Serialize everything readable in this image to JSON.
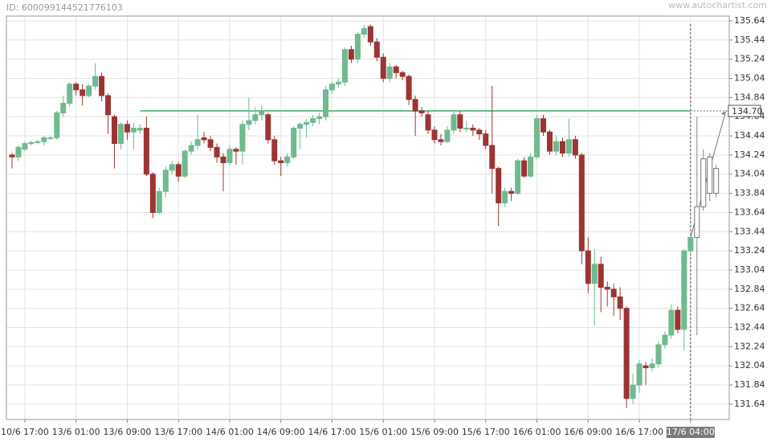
{
  "id_text": "ID: 600099144521776103",
  "watermark": "www.autochartist.com",
  "chart_data": {
    "type": "candlestick",
    "categories": [
      null,
      null,
      "10/6 17:00",
      null,
      null,
      null,
      null,
      null,
      null,
      null,
      "13/6 01:00",
      null,
      null,
      null,
      null,
      null,
      null,
      null,
      "13/6 09:00",
      null,
      null,
      null,
      null,
      null,
      null,
      null,
      "13/6 17:00",
      null,
      null,
      null,
      null,
      null,
      null,
      null,
      "14/6 01:00",
      null,
      null,
      null,
      null,
      null,
      null,
      null,
      "14/6 09:00",
      null,
      null,
      null,
      null,
      null,
      null,
      null,
      "14/6 17:00",
      null,
      null,
      null,
      null,
      null,
      null,
      null,
      "15/6 01:00",
      null,
      null,
      null,
      null,
      null,
      null,
      null,
      "15/6 09:00",
      null,
      null,
      null,
      null,
      null,
      null,
      null,
      "15/6 17:00",
      null,
      null,
      null,
      null,
      null,
      null,
      null,
      "16/6 01:00",
      null,
      null,
      null,
      null,
      null,
      null,
      null,
      "16/6 09:00",
      null,
      null,
      null,
      null,
      null,
      null,
      null,
      "16/6 17:00",
      null,
      null,
      null,
      null,
      null,
      null,
      null,
      "17/6 04:00",
      null,
      null,
      null,
      null
    ],
    "open": [
      134.24,
      134.22,
      134.3,
      134.36,
      134.37,
      134.38,
      134.42,
      134.42,
      134.68,
      134.78,
      134.98,
      134.92,
      134.86,
      134.96,
      135.06,
      134.86,
      134.64,
      134.36,
      134.56,
      134.48,
      134.5,
      134.52,
      134.04,
      133.64,
      133.86,
      134.08,
      134.14,
      134.02,
      134.28,
      134.34,
      134.42,
      134.4,
      134.32,
      134.22,
      134.16,
      134.3,
      134.28,
      134.56,
      134.6,
      134.66,
      134.66,
      134.4,
      134.18,
      134.16,
      134.22,
      134.52,
      134.56,
      134.58,
      134.62,
      134.64,
      134.92,
      134.98,
      135.0,
      135.34,
      135.24,
      135.5,
      135.58,
      135.42,
      135.26,
      135.04,
      135.16,
      135.1,
      135.06,
      134.82,
      134.7,
      134.66,
      134.5,
      134.4,
      134.38,
      134.5,
      134.66,
      134.52,
      134.52,
      134.5,
      134.46,
      134.34,
      134.1,
      133.74,
      133.86,
      133.84,
      134.18,
      134.02,
      134.22,
      134.62,
      134.48,
      134.28,
      134.38,
      134.26,
      134.4,
      134.24,
      133.24,
      132.9,
      133.1,
      132.86,
      132.84,
      132.76,
      132.64,
      131.7,
      131.84,
      132.04,
      132.02,
      132.06,
      132.26,
      132.36,
      132.62,
      132.42,
      133.24,
      133.38,
      133.7,
      134.22,
      133.84
    ],
    "high": [
      134.26,
      134.34,
      134.38,
      134.39,
      134.4,
      134.44,
      134.44,
      134.7,
      134.86,
      135.0,
      135.0,
      134.98,
      134.98,
      135.2,
      135.1,
      134.88,
      134.66,
      134.58,
      134.6,
      134.58,
      134.56,
      134.64,
      134.06,
      133.9,
      134.12,
      134.18,
      134.16,
      134.3,
      134.38,
      134.66,
      134.48,
      134.44,
      134.36,
      134.26,
      134.34,
      134.32,
      134.6,
      134.84,
      134.74,
      134.76,
      134.68,
      134.44,
      134.22,
      134.26,
      134.54,
      134.58,
      134.62,
      134.66,
      134.68,
      134.96,
      135.0,
      135.04,
      135.36,
      135.38,
      135.52,
      135.6,
      135.6,
      135.46,
      135.3,
      135.2,
      135.18,
      135.12,
      135.08,
      134.86,
      134.74,
      134.7,
      134.54,
      134.46,
      134.54,
      134.7,
      134.7,
      134.6,
      134.56,
      134.52,
      134.5,
      134.96,
      134.12,
      133.9,
      133.9,
      134.2,
      134.22,
      134.26,
      134.66,
      134.66,
      134.5,
      134.44,
      134.42,
      134.62,
      134.44,
      134.26,
      133.38,
      133.26,
      133.18,
      132.92,
      132.9,
      132.86,
      132.66,
      131.96,
      132.1,
      132.08,
      132.12,
      132.3,
      132.4,
      132.68,
      132.66,
      133.26,
      133.42,
      134.64,
      134.3,
      134.26,
      134.14
    ],
    "low": [
      134.1,
      134.18,
      134.28,
      134.34,
      134.35,
      134.34,
      134.4,
      134.4,
      134.64,
      134.74,
      134.86,
      134.76,
      134.84,
      134.92,
      134.8,
      134.46,
      134.1,
      134.3,
      134.4,
      134.3,
      134.46,
      134.02,
      133.58,
      133.62,
      133.8,
      134.04,
      133.96,
      134.0,
      134.24,
      134.3,
      134.36,
      134.28,
      134.16,
      133.86,
      134.14,
      134.14,
      134.14,
      134.5,
      134.56,
      134.6,
      134.36,
      134.14,
      134.02,
      134.12,
      134.2,
      134.3,
      134.42,
      134.54,
      134.56,
      134.6,
      134.88,
      134.94,
      134.96,
      135.2,
      135.2,
      135.46,
      135.38,
      135.22,
      135.0,
      135.0,
      135.04,
      135.02,
      134.76,
      134.44,
      134.64,
      134.46,
      134.36,
      134.34,
      134.36,
      134.46,
      134.48,
      134.48,
      134.44,
      134.4,
      134.3,
      133.84,
      133.5,
      133.7,
      133.76,
      133.82,
      134.0,
      134.0,
      134.2,
      134.44,
      134.24,
      134.24,
      134.22,
      134.22,
      134.2,
      133.1,
      132.8,
      132.46,
      132.6,
      132.66,
      132.56,
      132.52,
      131.6,
      131.64,
      131.76,
      131.84,
      131.98,
      132.02,
      132.22,
      132.32,
      132.38,
      132.2,
      133.2,
      132.36,
      133.66,
      133.76,
      133.8
    ],
    "close": [
      134.22,
      134.32,
      134.36,
      134.37,
      134.38,
      134.42,
      134.42,
      134.68,
      134.78,
      134.98,
      134.92,
      134.86,
      134.96,
      135.06,
      134.86,
      134.66,
      134.36,
      134.56,
      134.48,
      134.52,
      134.52,
      134.04,
      133.64,
      133.86,
      134.08,
      134.14,
      134.02,
      134.28,
      134.34,
      134.4,
      134.4,
      134.32,
      134.22,
      134.16,
      134.3,
      134.28,
      134.56,
      134.6,
      134.66,
      134.7,
      134.4,
      134.18,
      134.16,
      134.22,
      134.52,
      134.56,
      134.58,
      134.62,
      134.64,
      134.92,
      134.98,
      135.0,
      135.34,
      135.24,
      135.5,
      135.56,
      135.42,
      135.26,
      135.04,
      135.16,
      135.1,
      135.06,
      134.82,
      134.7,
      134.68,
      134.5,
      134.4,
      134.38,
      134.5,
      134.66,
      134.52,
      134.52,
      134.5,
      134.46,
      134.34,
      134.1,
      133.74,
      133.86,
      133.84,
      134.18,
      134.02,
      134.22,
      134.62,
      134.48,
      134.28,
      134.38,
      134.26,
      134.4,
      134.24,
      133.24,
      132.9,
      133.1,
      132.86,
      132.84,
      132.76,
      132.64,
      131.7,
      131.84,
      132.06,
      132.02,
      132.06,
      132.26,
      132.36,
      132.62,
      132.42,
      133.24,
      133.38,
      133.7,
      134.2,
      133.84,
      134.1
    ],
    "hollow": [
      false,
      false,
      false,
      false,
      false,
      false,
      false,
      false,
      false,
      false,
      false,
      false,
      false,
      false,
      false,
      false,
      false,
      false,
      false,
      false,
      false,
      false,
      false,
      false,
      false,
      false,
      false,
      false,
      false,
      false,
      false,
      false,
      false,
      false,
      false,
      false,
      false,
      false,
      false,
      false,
      false,
      false,
      false,
      false,
      false,
      false,
      false,
      false,
      false,
      false,
      false,
      false,
      false,
      false,
      false,
      false,
      false,
      false,
      false,
      false,
      false,
      false,
      false,
      false,
      false,
      false,
      false,
      false,
      false,
      false,
      false,
      false,
      false,
      false,
      false,
      false,
      false,
      false,
      false,
      false,
      false,
      false,
      false,
      false,
      false,
      false,
      false,
      false,
      false,
      false,
      false,
      false,
      false,
      false,
      false,
      false,
      false,
      false,
      false,
      false,
      false,
      false,
      false,
      false,
      false,
      false,
      false,
      true,
      true,
      true,
      true
    ],
    "up_color": "#6fba8f",
    "down_color": "#9c3434",
    "level_color": "#6fbf8f",
    "level": {
      "value": 134.7,
      "label": "134.70"
    },
    "ylim": [
      131.48,
      135.69
    ],
    "yticks": [
      131.64,
      131.84,
      132.04,
      132.24,
      132.44,
      132.64,
      132.84,
      133.04,
      133.24,
      133.44,
      133.64,
      133.84,
      134.04,
      134.24,
      134.44,
      134.64,
      134.84,
      135.04,
      135.24,
      135.44,
      135.64
    ],
    "grid": true
  }
}
